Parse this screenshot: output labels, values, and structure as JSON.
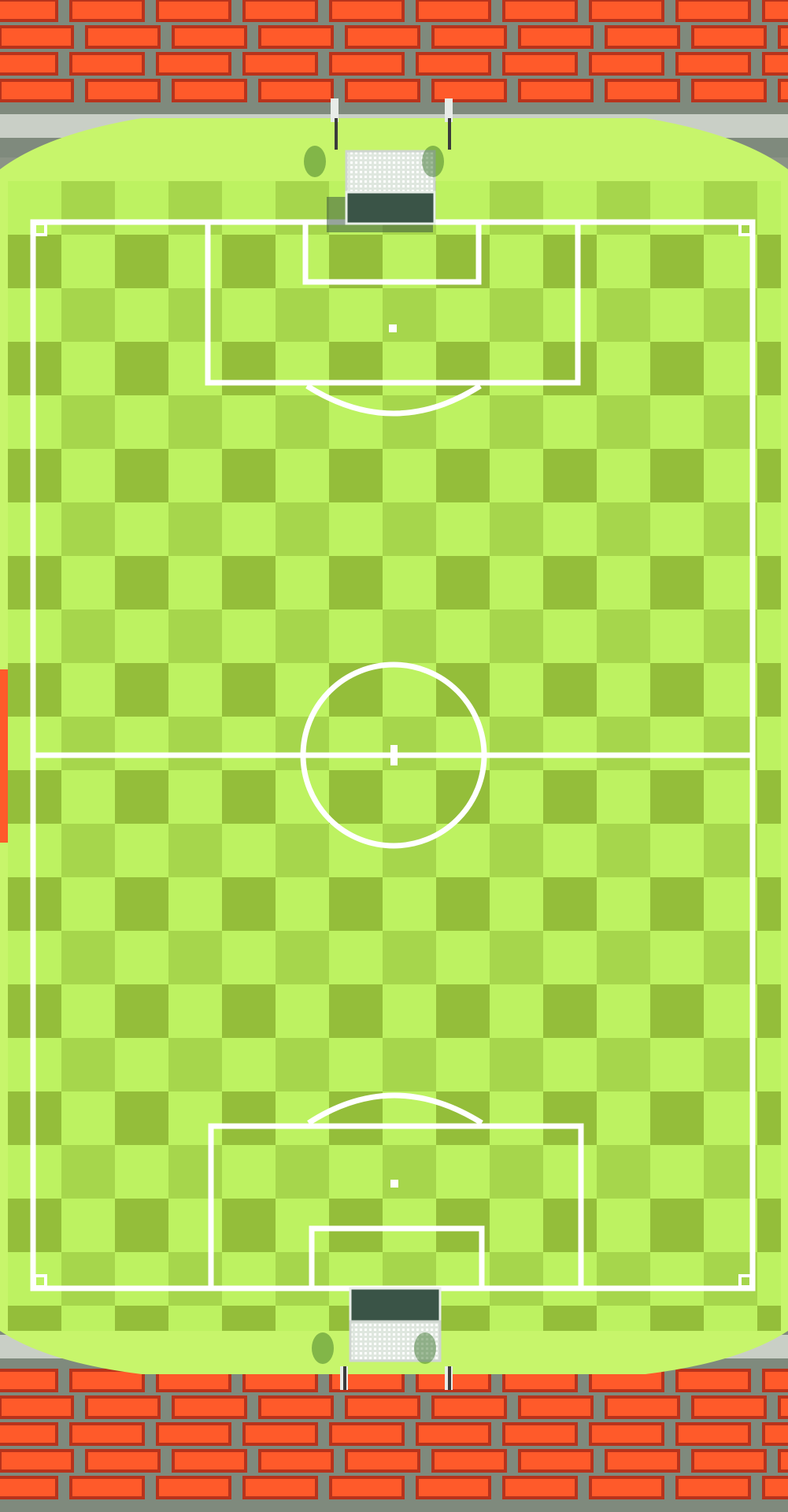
{
  "scene": {
    "type": "voxel-football-stadium",
    "view": "top-down",
    "theme": "minecraft-style blocks"
  },
  "colors": {
    "pitch_light": "#bdf261",
    "pitch_mid": "#a6d64c",
    "pitch_dark": "#94be3a",
    "pitch_shade": "#9aba55",
    "surround_grass": "#c7f56b",
    "line": "#ffffff",
    "seat_red": "#ff5a2a",
    "seat_shadow": "#b8331c",
    "concrete": "#c9cfc6",
    "concrete_dark": "#7f8a7d",
    "goal_frame": "#ffffff",
    "goal_net": "#2f4a3a"
  },
  "elements": {
    "north_goal": "goal-structure",
    "south_goal": "goal-structure",
    "floodlights": [
      "floodlight",
      "floodlight",
      "floodlight",
      "floodlight"
    ],
    "stands": [
      "north-stand",
      "south-stand",
      "west-stand-edge"
    ]
  }
}
